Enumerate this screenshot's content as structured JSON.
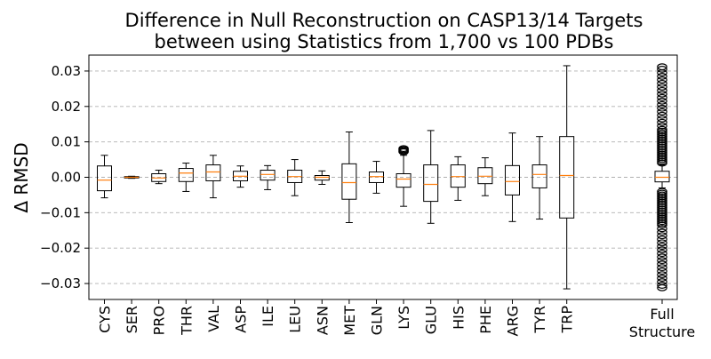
{
  "chart_data": {
    "type": "box",
    "title_lines": [
      "Difference in Null Reconstruction on CASP13/14 Targets",
      "between using Statistics from 1,700 vs 100 PDBs"
    ],
    "xlabel": "",
    "ylabel": "Δ RMSD",
    "ylim": [
      -0.0345,
      0.0345
    ],
    "yticks": [
      -0.03,
      -0.02,
      -0.01,
      0.0,
      0.01,
      0.02,
      0.03
    ],
    "ytick_labels": [
      "−0.03",
      "−0.02",
      "−0.01",
      "0.00",
      "0.01",
      "0.02",
      "0.03"
    ],
    "grid": {
      "y": true,
      "x": false,
      "style": "dashed"
    },
    "colors": {
      "box": "#000000",
      "median": "#ff7f0e",
      "grid": "#b0b0b0"
    },
    "boxes": [
      {
        "label": "CYS",
        "whisker_low": -0.0058,
        "q1": -0.0038,
        "median": -0.0008,
        "q3": 0.0032,
        "whisker_high": 0.0062,
        "fliers": []
      },
      {
        "label": "SER",
        "whisker_low": -0.0003,
        "q1": -0.0002,
        "median": 0.0,
        "q3": 0.0002,
        "whisker_high": 0.0003,
        "fliers": []
      },
      {
        "label": "PRO",
        "whisker_low": -0.0018,
        "q1": -0.0012,
        "median": -0.0002,
        "q3": 0.001,
        "whisker_high": 0.002,
        "fliers": []
      },
      {
        "label": "THR",
        "whisker_low": -0.004,
        "q1": -0.0012,
        "median": 0.0012,
        "q3": 0.0025,
        "whisker_high": 0.004,
        "fliers": []
      },
      {
        "label": "VAL",
        "whisker_low": -0.0058,
        "q1": -0.001,
        "median": 0.0015,
        "q3": 0.0035,
        "whisker_high": 0.0062,
        "fliers": []
      },
      {
        "label": "ASP",
        "whisker_low": -0.0028,
        "q1": -0.001,
        "median": 0.0003,
        "q3": 0.0017,
        "whisker_high": 0.0032,
        "fliers": []
      },
      {
        "label": "ILE",
        "whisker_low": -0.0035,
        "q1": -0.0008,
        "median": 0.0008,
        "q3": 0.002,
        "whisker_high": 0.0033,
        "fliers": []
      },
      {
        "label": "LEU",
        "whisker_low": -0.0052,
        "q1": -0.0015,
        "median": 0.0002,
        "q3": 0.002,
        "whisker_high": 0.005,
        "fliers": []
      },
      {
        "label": "ASN",
        "whisker_low": -0.002,
        "q1": -0.0008,
        "median": 0.0,
        "q3": 0.0005,
        "whisker_high": 0.0018,
        "fliers": []
      },
      {
        "label": "MET",
        "whisker_low": -0.0128,
        "q1": -0.0062,
        "median": -0.0015,
        "q3": 0.0038,
        "whisker_high": 0.0128,
        "fliers": []
      },
      {
        "label": "GLN",
        "whisker_low": -0.0045,
        "q1": -0.0015,
        "median": 0.0002,
        "q3": 0.0015,
        "whisker_high": 0.0045,
        "fliers": []
      },
      {
        "label": "LYS",
        "whisker_low": -0.0082,
        "q1": -0.0028,
        "median": -0.0005,
        "q3": 0.001,
        "whisker_high": 0.0062,
        "fliers": [
          0.0072,
          0.0075,
          0.0078,
          0.0081
        ]
      },
      {
        "label": "GLU",
        "whisker_low": -0.013,
        "q1": -0.0068,
        "median": -0.002,
        "q3": 0.0035,
        "whisker_high": 0.0132,
        "fliers": []
      },
      {
        "label": "HIS",
        "whisker_low": -0.0065,
        "q1": -0.0028,
        "median": 0.0002,
        "q3": 0.0035,
        "whisker_high": 0.0058,
        "fliers": []
      },
      {
        "label": "PHE",
        "whisker_low": -0.0052,
        "q1": -0.0018,
        "median": 0.0003,
        "q3": 0.0027,
        "whisker_high": 0.0055,
        "fliers": []
      },
      {
        "label": "ARG",
        "whisker_low": -0.0125,
        "q1": -0.005,
        "median": -0.0012,
        "q3": 0.0033,
        "whisker_high": 0.0125,
        "fliers": []
      },
      {
        "label": "TYR",
        "whisker_low": -0.0118,
        "q1": -0.003,
        "median": 0.0008,
        "q3": 0.0035,
        "whisker_high": 0.0115,
        "fliers": []
      },
      {
        "label": "TRP",
        "whisker_low": -0.0315,
        "q1": -0.0115,
        "median": 0.0005,
        "q3": 0.0115,
        "whisker_high": 0.0315,
        "fliers": []
      },
      {
        "label": "Full\nStructure",
        "whisker_low": -0.003,
        "q1": -0.0013,
        "median": 0.0,
        "q3": 0.0017,
        "whisker_high": 0.0035,
        "fliers": [
          0.004,
          0.0045,
          0.005,
          0.0055,
          0.006,
          0.0065,
          0.007,
          0.0075,
          0.008,
          0.0085,
          0.009,
          0.0095,
          0.01,
          0.0105,
          0.011,
          0.0115,
          0.012,
          0.0125,
          0.013,
          0.0135,
          0.0145,
          0.0155,
          0.0165,
          0.0175,
          0.0185,
          0.0195,
          0.0205,
          0.0215,
          0.0225,
          0.0235,
          0.0245,
          0.0255,
          0.0265,
          0.0275,
          0.0285,
          0.0295,
          0.0305,
          0.0312,
          -0.004,
          -0.0045,
          -0.005,
          -0.0055,
          -0.006,
          -0.0065,
          -0.007,
          -0.0075,
          -0.008,
          -0.0085,
          -0.009,
          -0.0095,
          -0.01,
          -0.0105,
          -0.011,
          -0.0115,
          -0.012,
          -0.0125,
          -0.013,
          -0.0135,
          -0.0145,
          -0.0155,
          -0.0165,
          -0.0175,
          -0.0185,
          -0.0195,
          -0.0205,
          -0.0215,
          -0.0225,
          -0.0235,
          -0.0245,
          -0.0255,
          -0.0265,
          -0.0275,
          -0.0285,
          -0.0295,
          -0.0305,
          -0.0312
        ]
      }
    ]
  }
}
